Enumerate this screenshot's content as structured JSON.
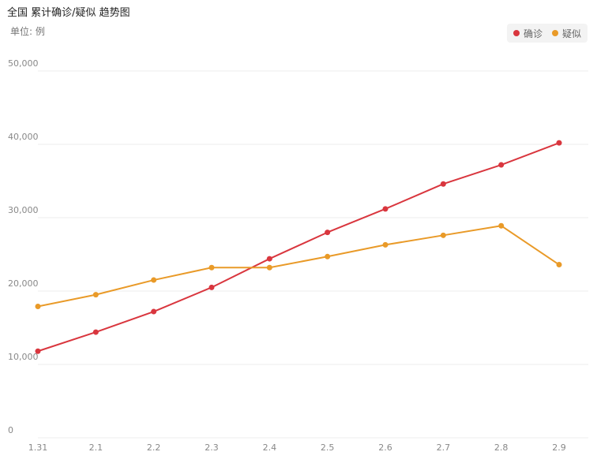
{
  "title": "全国 累计确诊/疑似 趋势图",
  "unit": "单位: 例",
  "legend": [
    {
      "label": "确诊",
      "color": "#d9363e"
    },
    {
      "label": "疑似",
      "color": "#e99a28"
    }
  ],
  "chart_data": {
    "type": "line",
    "title": "全国 累计确诊/疑似 趋势图",
    "x": [
      "1.31",
      "2.1",
      "2.2",
      "2.3",
      "2.4",
      "2.5",
      "2.6",
      "2.7",
      "2.8",
      "2.9"
    ],
    "ylim": [
      0,
      50000
    ],
    "yticks": [
      0,
      10000,
      20000,
      30000,
      40000,
      50000
    ],
    "ytick_labels": [
      "0",
      "10,000",
      "20,000",
      "30,000",
      "40,000",
      "50,000"
    ],
    "grid": true,
    "legend_position": "top-right",
    "series": [
      {
        "name": "确诊",
        "color": "#d9363e",
        "values": [
          11800,
          14400,
          17200,
          20500,
          24400,
          28000,
          31200,
          34600,
          37200,
          40200
        ]
      },
      {
        "name": "疑似",
        "color": "#e99a28",
        "values": [
          17900,
          19500,
          21500,
          23200,
          23200,
          24700,
          26300,
          27600,
          28900,
          23600
        ]
      }
    ]
  }
}
